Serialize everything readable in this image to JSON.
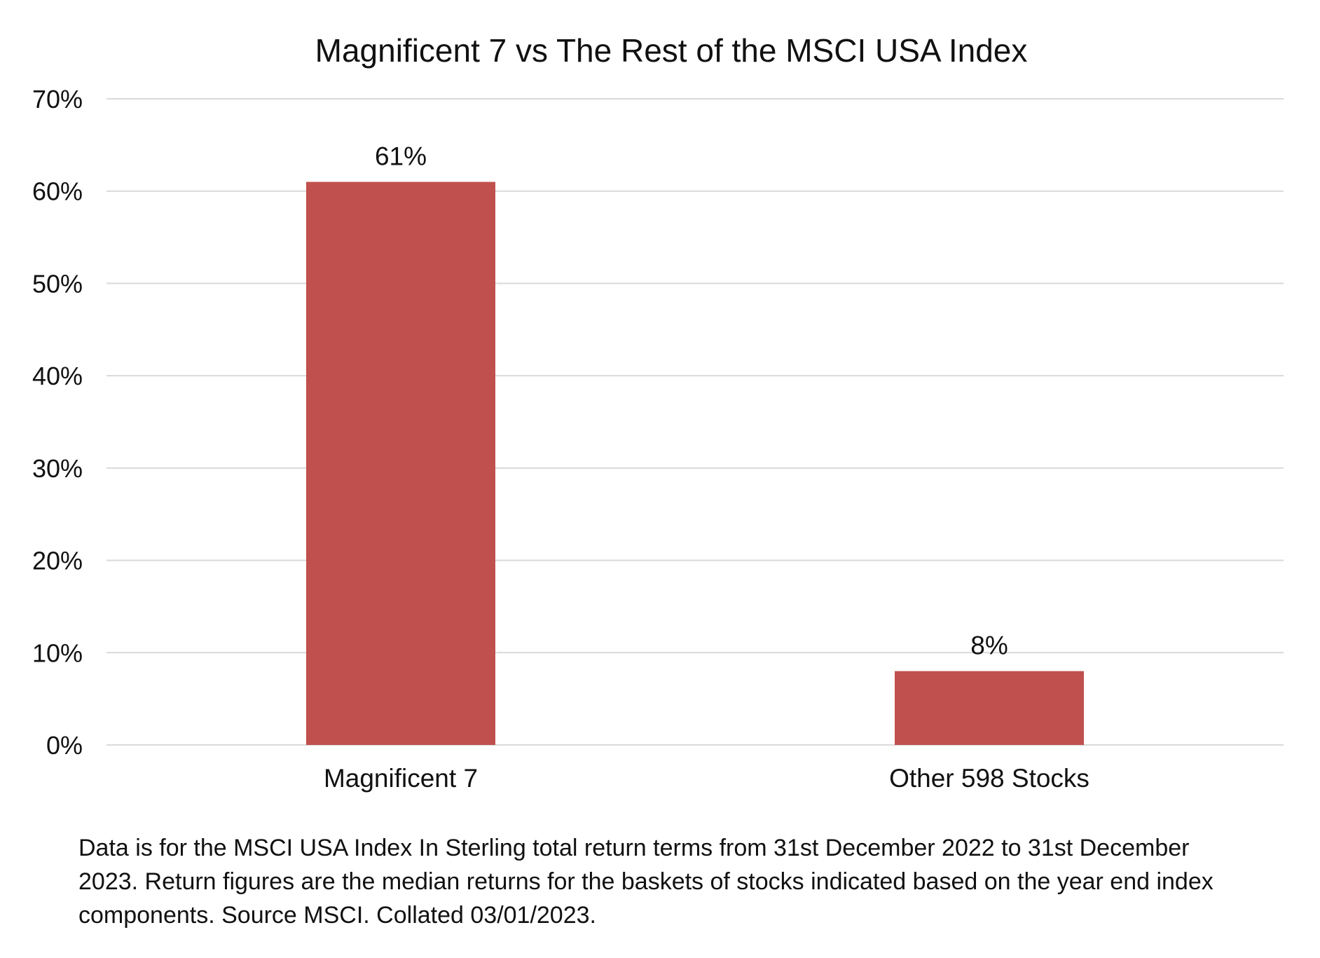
{
  "chart_data": {
    "type": "bar",
    "title": "Magnificent 7 vs The Rest of the MSCI USA Index",
    "categories": [
      "Magnificent 7",
      "Other 598 Stocks"
    ],
    "values": [
      61,
      8
    ],
    "data_labels": [
      "61%",
      "8%"
    ],
    "xlabel": "",
    "ylabel": "",
    "ylim": [
      0,
      70
    ],
    "yticks": [
      0,
      10,
      20,
      30,
      40,
      50,
      60,
      70
    ],
    "ytick_labels": [
      "0%",
      "10%",
      "20%",
      "30%",
      "40%",
      "50%",
      "60%",
      "70%"
    ],
    "grid": true,
    "legend": "none",
    "bar_color": "#c0504d"
  },
  "footnote": "Data is for the MSCI USA Index In Sterling total return terms from 31st December 2022 to 31st December 2023. Return figures are the median returns for the baskets of stocks indicated based on the year end index components. Source MSCI. Collated 03/01/2023."
}
